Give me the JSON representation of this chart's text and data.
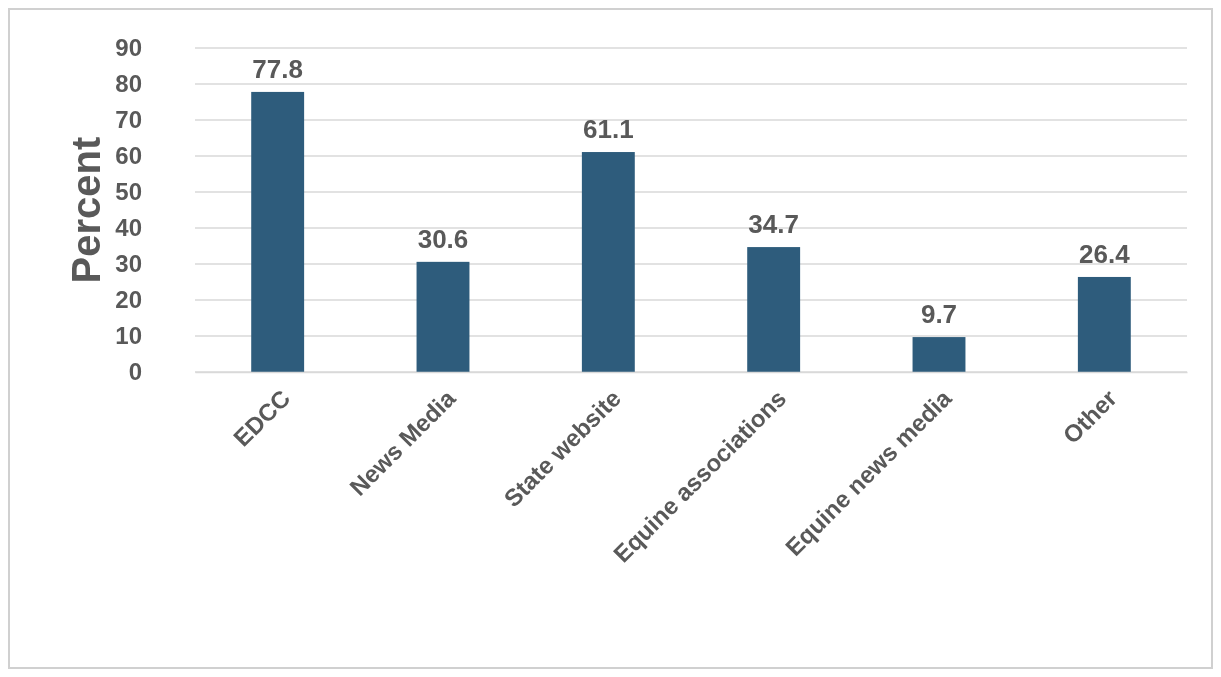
{
  "chart_data": {
    "type": "bar",
    "ylabel": "Percent",
    "categories": [
      "EDCC",
      "News Media",
      "State website",
      "Equine associations",
      "Equine news media",
      "Other"
    ],
    "values": [
      77.8,
      30.6,
      61.1,
      34.7,
      9.7,
      26.4
    ],
    "color": "#2e5c7c",
    "ylim": [
      0,
      90
    ],
    "yticks": [
      0,
      10,
      20,
      30,
      40,
      50,
      60,
      70,
      80,
      90
    ],
    "grid": "y",
    "data_labels": true
  }
}
